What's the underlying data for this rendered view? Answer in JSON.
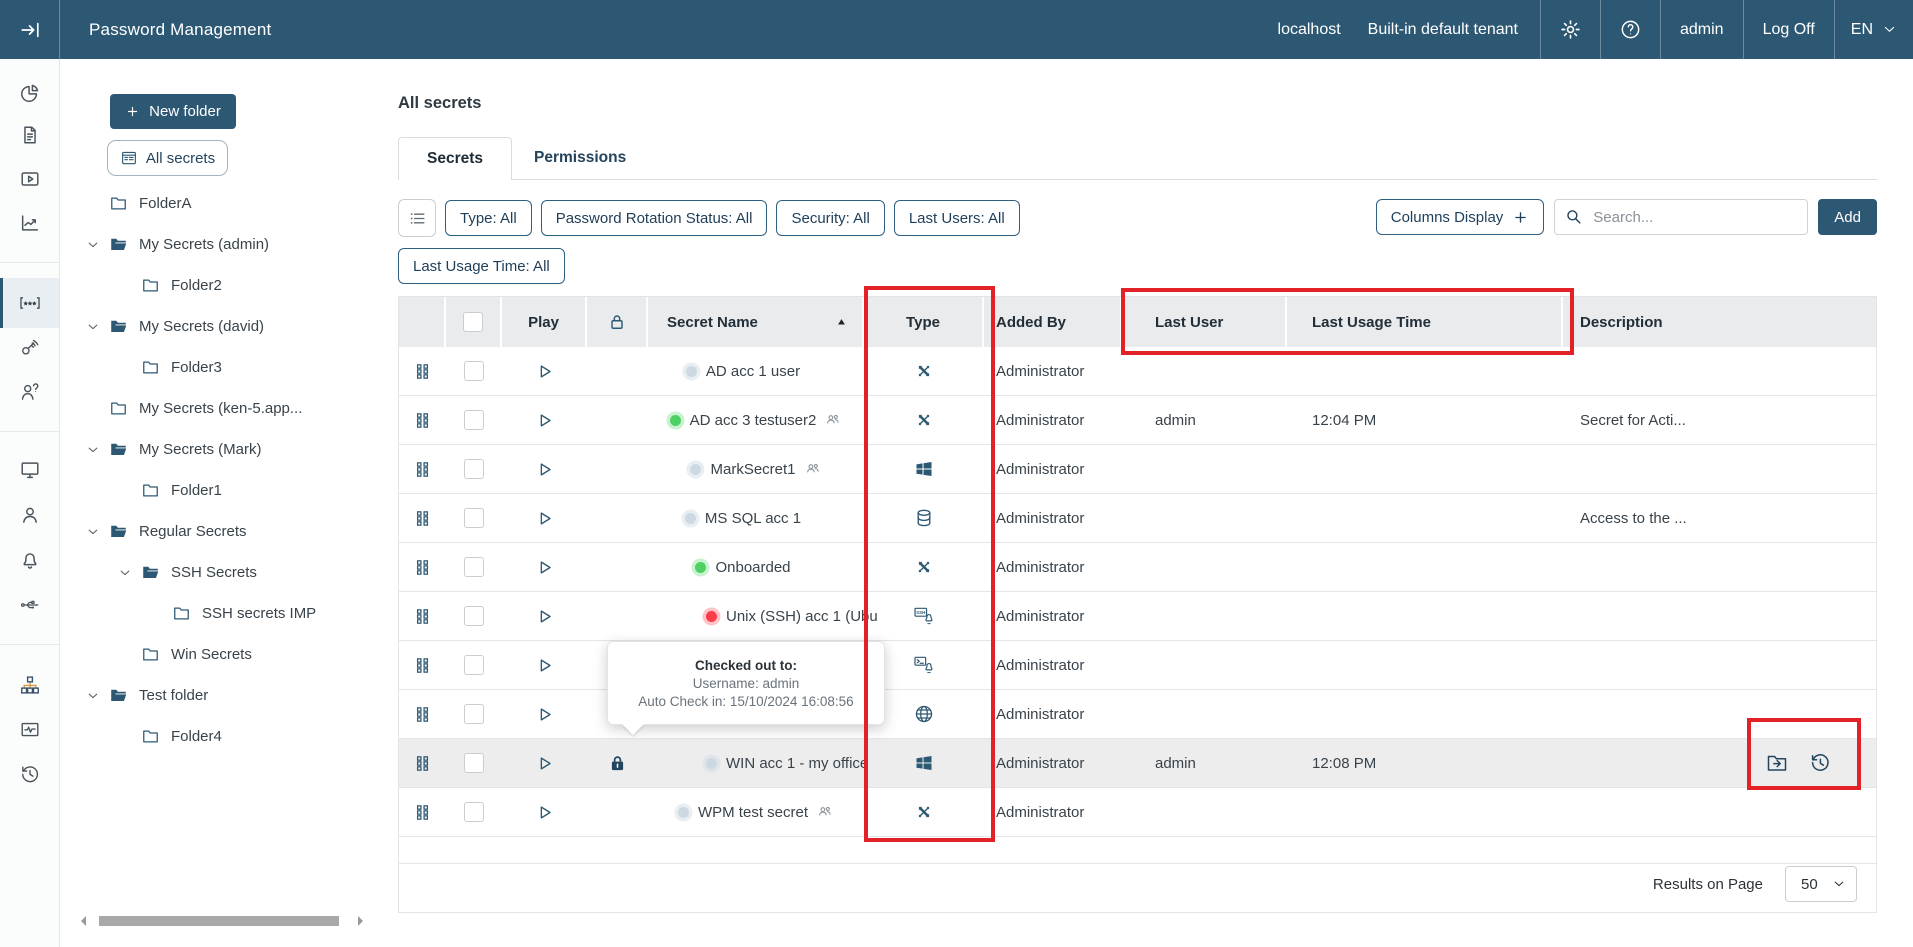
{
  "colors": {
    "header_bg": "#2d5873",
    "accent": "#2d5873",
    "highlight": "#e32227",
    "row_hover": "#ededee",
    "table_header_bg": "#e9ebed"
  },
  "header": {
    "title": "Password Management",
    "host": "localhost",
    "tenant": "Built-in default tenant",
    "user": "admin",
    "log_off": "Log Off",
    "language": "EN"
  },
  "icons_catalog": [
    "collapse-sidebar-icon",
    "gear-icon",
    "help-icon",
    "chevron-down-icon",
    "pie-chart-icon",
    "document-icon",
    "video-session-icon",
    "line-chart-icon",
    "password-secrets-icon",
    "key-rotation-icon",
    "user-question-icon",
    "monitor-icon",
    "user-icon",
    "bell-icon",
    "usb-icon",
    "sitemap-icon",
    "monitor-activity-icon",
    "history-icon",
    "list-icon",
    "list-card-icon",
    "search-icon",
    "plus-icon",
    "grid-handle-icon",
    "play-icon",
    "lock-outline-icon",
    "lock-filled-icon",
    "active-directory-icon",
    "windows-icon",
    "database-icon",
    "ssh-linux-icon",
    "terminal-linux-icon",
    "globe-icon",
    "users-icon",
    "folder-icon",
    "folder-open-icon",
    "folder-move-icon",
    "history-restore-icon",
    "sort-asc-icon"
  ],
  "rail": {
    "items": [
      {
        "icon": "pie-chart-icon",
        "active": false
      },
      {
        "icon": "document-icon",
        "active": false
      },
      {
        "icon": "video-session-icon",
        "active": false
      },
      {
        "icon": "line-chart-icon",
        "active": false
      },
      {
        "icon": "password-secrets-icon",
        "active": true
      },
      {
        "icon": "key-rotation-icon",
        "active": false
      },
      {
        "icon": "user-question-icon",
        "active": false
      },
      {
        "icon": "monitor-icon",
        "active": false
      },
      {
        "icon": "user-icon",
        "active": false
      },
      {
        "icon": "bell-icon",
        "active": false
      },
      {
        "icon": "usb-icon",
        "active": false
      },
      {
        "icon": "sitemap-icon",
        "active": false
      },
      {
        "icon": "monitor-activity-icon",
        "active": false
      },
      {
        "icon": "history-icon",
        "active": false
      }
    ]
  },
  "sidebar": {
    "new_folder": "New folder",
    "all_secrets": "All secrets",
    "tree": [
      {
        "label": "FolderA",
        "level": 0,
        "chevron": false,
        "folder_icon": "folder-icon"
      },
      {
        "label": "My Secrets (admin)",
        "level": 0,
        "chevron": true,
        "open": true,
        "folder_icon": "folder-open-icon"
      },
      {
        "label": "Folder2",
        "level": 1,
        "chevron": false,
        "folder_icon": "folder-icon"
      },
      {
        "label": "My Secrets (david)",
        "level": 0,
        "chevron": true,
        "open": true,
        "folder_icon": "folder-open-icon"
      },
      {
        "label": "Folder3",
        "level": 1,
        "chevron": false,
        "folder_icon": "folder-icon"
      },
      {
        "label": "My Secrets (ken-5.app...",
        "level": 0,
        "chevron": false,
        "folder_icon": "folder-icon"
      },
      {
        "label": "My Secrets (Mark)",
        "level": 0,
        "chevron": true,
        "open": true,
        "folder_icon": "folder-open-icon"
      },
      {
        "label": "Folder1",
        "level": 1,
        "chevron": false,
        "folder_icon": "folder-icon"
      },
      {
        "label": "Regular Secrets",
        "level": 0,
        "chevron": true,
        "open": true,
        "folder_icon": "folder-open-icon"
      },
      {
        "label": "SSH Secrets",
        "level": 1,
        "chevron": true,
        "open": true,
        "folder_icon": "folder-open-icon"
      },
      {
        "label": "SSH secrets IMP",
        "level": 2,
        "chevron": false,
        "folder_icon": "folder-icon"
      },
      {
        "label": "Win Secrets",
        "level": 1,
        "chevron": false,
        "folder_icon": "folder-icon"
      },
      {
        "label": "Test folder",
        "level": 0,
        "chevron": true,
        "open": true,
        "folder_icon": "folder-open-icon"
      },
      {
        "label": "Folder4",
        "level": 1,
        "chevron": false,
        "folder_icon": "folder-icon"
      }
    ]
  },
  "main": {
    "title": "All secrets",
    "tabs": [
      {
        "label": "Secrets",
        "active": true
      },
      {
        "label": "Permissions",
        "active": false
      }
    ],
    "filters": {
      "row1": [
        "Type: All",
        "Password Rotation Status: All",
        "Security: All",
        "Last Users: All"
      ],
      "row2": [
        "Last Usage Time: All"
      ]
    },
    "toolbar": {
      "columns_display": "Columns Display",
      "search_placeholder": "Search...",
      "add": "Add"
    },
    "table": {
      "headers": {
        "play": "Play",
        "secret_name": "Secret Name",
        "type": "Type",
        "added_by": "Added By",
        "last_user": "Last User",
        "last_usage_time": "Last Usage Time",
        "description": "Description"
      },
      "rows": [
        {
          "status": "gray",
          "name": "AD acc 1 user",
          "shared": false,
          "locked": false,
          "type_icon": "active-directory-icon",
          "added_by": "Administrator",
          "last_user": "",
          "last_usage_time": "",
          "description": ""
        },
        {
          "status": "green",
          "name": "AD acc 3 testuser2",
          "shared": true,
          "locked": false,
          "type_icon": "active-directory-icon",
          "added_by": "Administrator",
          "last_user": "admin",
          "last_usage_time": "12:04 PM",
          "description": "Secret for Acti..."
        },
        {
          "status": "gray",
          "name": "MarkSecret1",
          "shared": true,
          "locked": false,
          "type_icon": "windows-icon",
          "added_by": "Administrator",
          "last_user": "",
          "last_usage_time": "",
          "description": ""
        },
        {
          "status": "gray",
          "name": "MS SQL acc 1",
          "shared": false,
          "locked": false,
          "type_icon": "database-icon",
          "added_by": "Administrator",
          "last_user": "",
          "last_usage_time": "",
          "description": "Access to the ..."
        },
        {
          "status": "green",
          "name": "Onboarded",
          "shared": false,
          "locked": false,
          "type_icon": "active-directory-icon",
          "added_by": "Administrator",
          "last_user": "",
          "last_usage_time": "",
          "description": ""
        },
        {
          "status": "red",
          "name": "Unix (SSH) acc 1 (Ubu",
          "shared": false,
          "locked": false,
          "clip": true,
          "type_icon": "ssh-linux-icon",
          "added_by": "Administrator",
          "last_user": "",
          "last_usage_time": "",
          "description": ""
        },
        {
          "status": "",
          "name": "",
          "shared": false,
          "locked": false,
          "type_icon": "terminal-linux-icon",
          "added_by": "Administrator",
          "last_user": "",
          "last_usage_time": "",
          "description": ""
        },
        {
          "status": "",
          "name": "",
          "shared": false,
          "locked": false,
          "type_icon": "globe-icon",
          "added_by": "Administrator",
          "last_user": "",
          "last_usage_time": "",
          "description": ""
        },
        {
          "status": "gray",
          "name": "WIN acc 1 - my office",
          "shared": false,
          "locked": true,
          "hover": true,
          "clip": true,
          "has_actions": true,
          "type_icon": "windows-icon",
          "added_by": "Administrator",
          "last_user": "admin",
          "last_usage_time": "12:08 PM",
          "description": ""
        },
        {
          "status": "gray",
          "name": "WPM test secret",
          "shared": true,
          "locked": false,
          "type_icon": "active-directory-icon",
          "added_by": "Administrator",
          "last_user": "",
          "last_usage_time": "",
          "description": ""
        }
      ]
    },
    "tooltip": {
      "title": "Checked out to:",
      "username": "Username: admin",
      "auto_check_in": "Auto Check in: 15/10/2024 16:08:56"
    },
    "footer": {
      "results_on_page": "Results on Page",
      "page_size": "50"
    }
  }
}
